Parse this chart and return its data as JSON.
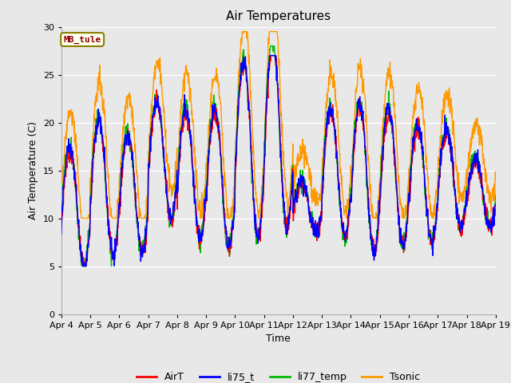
{
  "title": "Air Temperatures",
  "xlabel": "Time",
  "ylabel": "Air Temperature (C)",
  "annotation": "MB_tule",
  "ylim": [
    0,
    30
  ],
  "yticks": [
    0,
    5,
    10,
    15,
    20,
    25,
    30
  ],
  "date_labels": [
    "Apr 4",
    "Apr 5",
    "Apr 6",
    "Apr 7",
    "Apr 8",
    "Apr 9",
    "Apr 10",
    "Apr 11",
    "Apr 12",
    "Apr 13",
    "Apr 14",
    "Apr 15",
    "Apr 16",
    "Apr 17",
    "Apr 18",
    "Apr 19"
  ],
  "colors": {
    "AirT": "#ff0000",
    "li75_t": "#0000ff",
    "li77_temp": "#00bb00",
    "Tsonic": "#ff9900"
  },
  "bg_color": "#e8e8e8",
  "fig_bg": "#e8e8e8",
  "grid_color": "#ffffff",
  "figsize": [
    6.4,
    4.8
  ],
  "dpi": 100
}
